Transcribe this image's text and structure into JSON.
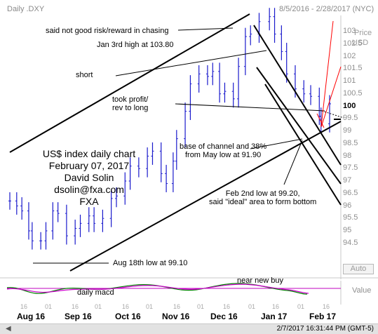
{
  "window": {
    "symbol": "Daily .DXY",
    "date_range": "8/5/2016 - 2/28/2017 (NYC)",
    "status_time": "2/7/2017 16:31:44 PM (GMT-5)"
  },
  "axes": {
    "price_title": "Price",
    "price_unit": "USD",
    "auto_label": "Auto",
    "macd_value_label": "Value",
    "month_labels": [
      "Aug 16",
      "Sep 16",
      "Oct 16",
      "Nov 16",
      "Dec 16",
      "Jan 17",
      "Feb 17"
    ],
    "day_ticks": [
      "16",
      "01",
      "16",
      "01",
      "16",
      "01",
      "16",
      "01",
      "16",
      "01",
      "16",
      "01",
      "16",
      "01",
      "16"
    ]
  },
  "info_box": [
    "US$ index daily chart",
    "February 07, 2017",
    "David Solin",
    "dsolin@fxa.com",
    "FXA"
  ],
  "annotations": {
    "risk_reward": "said not good risk/reward in chasing",
    "jan3": "Jan 3rd high at 103.80",
    "short": "short",
    "took_profit_1": "took profit/",
    "took_profit_2": "rev to long",
    "base_1": "base of channel and 38%",
    "base_2": "from May low at 91.90",
    "feb2_1": "Feb 2nd low at 99.20,",
    "feb2_2": "said \"ideal\" area to form bottom",
    "aug18": "Aug 18th low at 99.10",
    "near_buy": "near new buy",
    "macd": "daily macd"
  },
  "chart_data": {
    "type": "line",
    "title": "Daily .DXY",
    "subtitle": "8/5/2016 - 2/28/2017 (NYC)",
    "ylabel": "Price USD",
    "ylim": [
      94,
      104
    ],
    "y_ticks": [
      "103",
      "102.5",
      "102",
      "101.5",
      "101",
      "100.5",
      "100",
      "99.5",
      "99",
      "98.5",
      "98",
      "97.5",
      "97",
      "96.5",
      "96",
      "95.5",
      "95",
      "94.5"
    ],
    "bold_tick": "100",
    "grid": false,
    "series": [
      {
        "name": ".DXY",
        "x": [
          "2016-08-05",
          "2016-08-09",
          "2016-08-12",
          "2016-08-16",
          "2016-08-18",
          "2016-08-23",
          "2016-08-26",
          "2016-08-30",
          "2016-09-02",
          "2016-09-07",
          "2016-09-12",
          "2016-09-15",
          "2016-09-20",
          "2016-09-23",
          "2016-09-28",
          "2016-10-03",
          "2016-10-06",
          "2016-10-11",
          "2016-10-14",
          "2016-10-19",
          "2016-10-24",
          "2016-10-27",
          "2016-11-01",
          "2016-11-04",
          "2016-11-08",
          "2016-11-10",
          "2016-11-15",
          "2016-11-18",
          "2016-11-23",
          "2016-11-28",
          "2016-12-01",
          "2016-12-05",
          "2016-12-08",
          "2016-12-13",
          "2016-12-16",
          "2016-12-20",
          "2016-12-23",
          "2016-12-28",
          "2017-01-03",
          "2017-01-06",
          "2017-01-10",
          "2017-01-13",
          "2017-01-18",
          "2017-01-23",
          "2017-01-27",
          "2017-02-01",
          "2017-02-02",
          "2017-02-07"
        ],
        "values": [
          96.2,
          96.0,
          95.8,
          95.0,
          94.6,
          94.6,
          95.0,
          95.8,
          95.7,
          94.8,
          95.1,
          95.3,
          95.6,
          95.3,
          95.5,
          96.3,
          96.4,
          97.0,
          97.6,
          97.5,
          98.0,
          98.2,
          97.3,
          96.9,
          97.8,
          98.7,
          99.8,
          100.9,
          101.3,
          101.2,
          101.4,
          100.5,
          100.6,
          100.3,
          101.6,
          102.8,
          102.9,
          103.4,
          103.6,
          102.9,
          102.2,
          101.3,
          100.7,
          100.5,
          100.4,
          99.6,
          99.3,
          100.1
        ]
      }
    ],
    "macd_series": [
      {
        "name": "MACD",
        "color": "#008000"
      },
      {
        "name": "Signal",
        "color": "#cc00cc"
      }
    ]
  }
}
